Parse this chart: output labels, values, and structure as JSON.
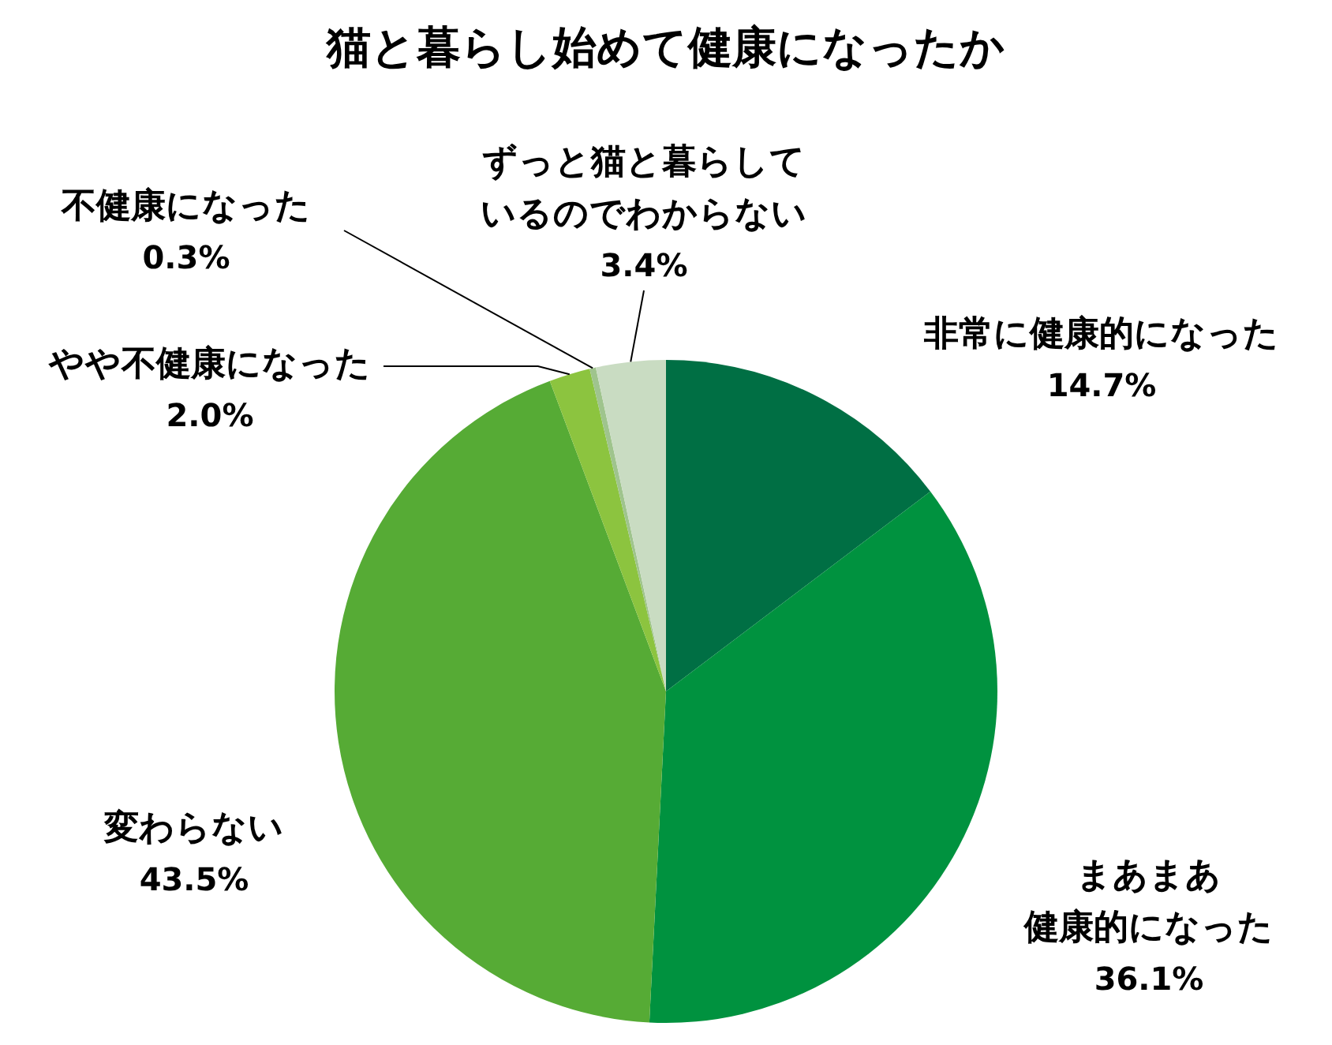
{
  "chart_data": {
    "type": "pie",
    "title": "猫と暮らし始めて健康になったか",
    "categories": [
      "非常に健康的になった",
      "まあまあ健康的になった",
      "変わらない",
      "やや不健康になった",
      "不健康になった",
      "ずっと猫と暮らしているのでわからない"
    ],
    "values": [
      14.7,
      36.1,
      43.5,
      2.0,
      0.3,
      3.4
    ],
    "value_labels": [
      "14.7%",
      "36.1%",
      "43.5%",
      "2.0%",
      "0.3%",
      "3.4%"
    ],
    "colors": [
      "#006f44",
      "#00923f",
      "#56ab35",
      "#8cc43f",
      "#9fc48d",
      "#c9dcc2"
    ],
    "legend": false
  }
}
